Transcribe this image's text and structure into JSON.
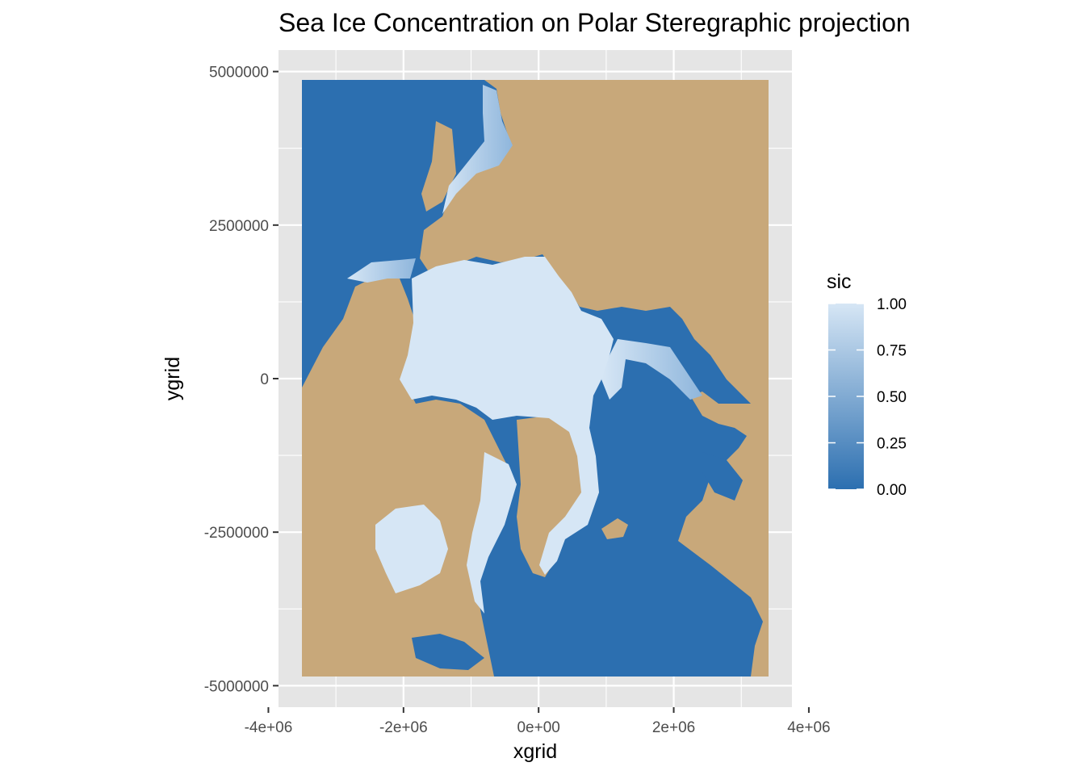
{
  "chart_data": {
    "type": "heatmap",
    "title": "Sea Ice Concentration on Polar Steregraphic projection",
    "xlabel": "xgrid",
    "ylabel": "ygrid",
    "xlim": [
      -3850000,
      3750000
    ],
    "ylim": [
      -5350000,
      5350000
    ],
    "data_extent": {
      "x": [
        -3850000,
        3750000
      ],
      "y": [
        -4850000,
        4850000
      ]
    },
    "x_ticks": [
      -4000000,
      -2000000,
      0,
      2000000,
      4000000
    ],
    "x_tick_labels": [
      "-4e+06",
      "-2e+06",
      "0e+00",
      "2e+06",
      "4e+06"
    ],
    "y_ticks": [
      5000000,
      2500000,
      0,
      -2500000,
      -5000000
    ],
    "y_tick_labels": [
      "5000000",
      "2500000",
      "0",
      "-2500000",
      "-5000000"
    ],
    "grid": true,
    "legend": {
      "title": "sic",
      "position": "right",
      "breaks": [
        1.0,
        0.75,
        0.5,
        0.25,
        0.0
      ],
      "labels": [
        "1.00",
        "0.75",
        "0.50",
        "0.25",
        "0.00"
      ],
      "low_color": "#2c6fb0",
      "high_color": "#d6e6f5"
    },
    "colors": {
      "panel_bg": "#e5e5e5",
      "grid_line": "#ffffff",
      "land": "#c8a87a",
      "ocean": "#2c6fb0",
      "ice": "#d6e6f5"
    }
  }
}
